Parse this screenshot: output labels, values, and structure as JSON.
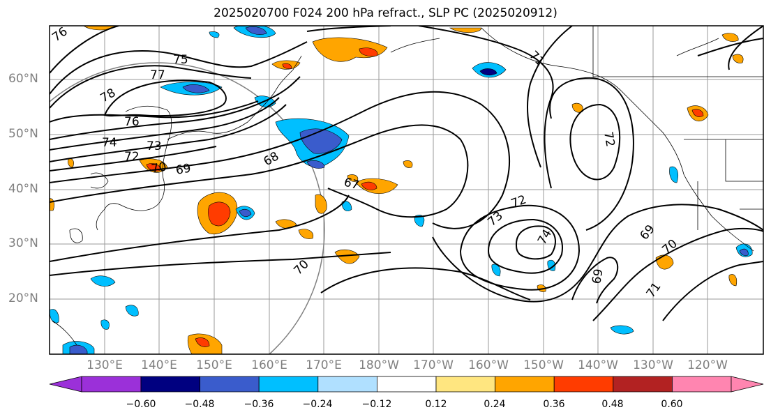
{
  "title": "2025020700 F024 200 hPa refract., SLP PC (2025020912)",
  "lat_labels": [
    "60°N",
    "50°N",
    "40°N",
    "30°N",
    "20°N"
  ],
  "lon_labels": [
    "130°E",
    "140°E",
    "150°E",
    "160°E",
    "170°E",
    "180°W",
    "170°W",
    "160°W",
    "150°W",
    "140°W",
    "130°W",
    "120°W"
  ],
  "contour_labels": [
    "76",
    "75",
    "77",
    "78",
    "76",
    "74",
    "72",
    "73",
    "70",
    "69",
    "68",
    "67",
    "70",
    "71",
    "72",
    "72",
    "73",
    "74",
    "69",
    "69",
    "70",
    "71"
  ],
  "colorbar": {
    "ticks": [
      "−0.60",
      "−0.48",
      "−0.36",
      "−0.24",
      "−0.12",
      "0.12",
      "0.24",
      "0.36",
      "0.48",
      "0.60"
    ],
    "colors": [
      "#9b30d9",
      "#000080",
      "#3a5ccc",
      "#00bfff",
      "#b0e0ff",
      "#ffffff",
      "#ffe680",
      "#ffa500",
      "#ff3c00",
      "#b22222",
      "#ff85b0"
    ]
  }
}
